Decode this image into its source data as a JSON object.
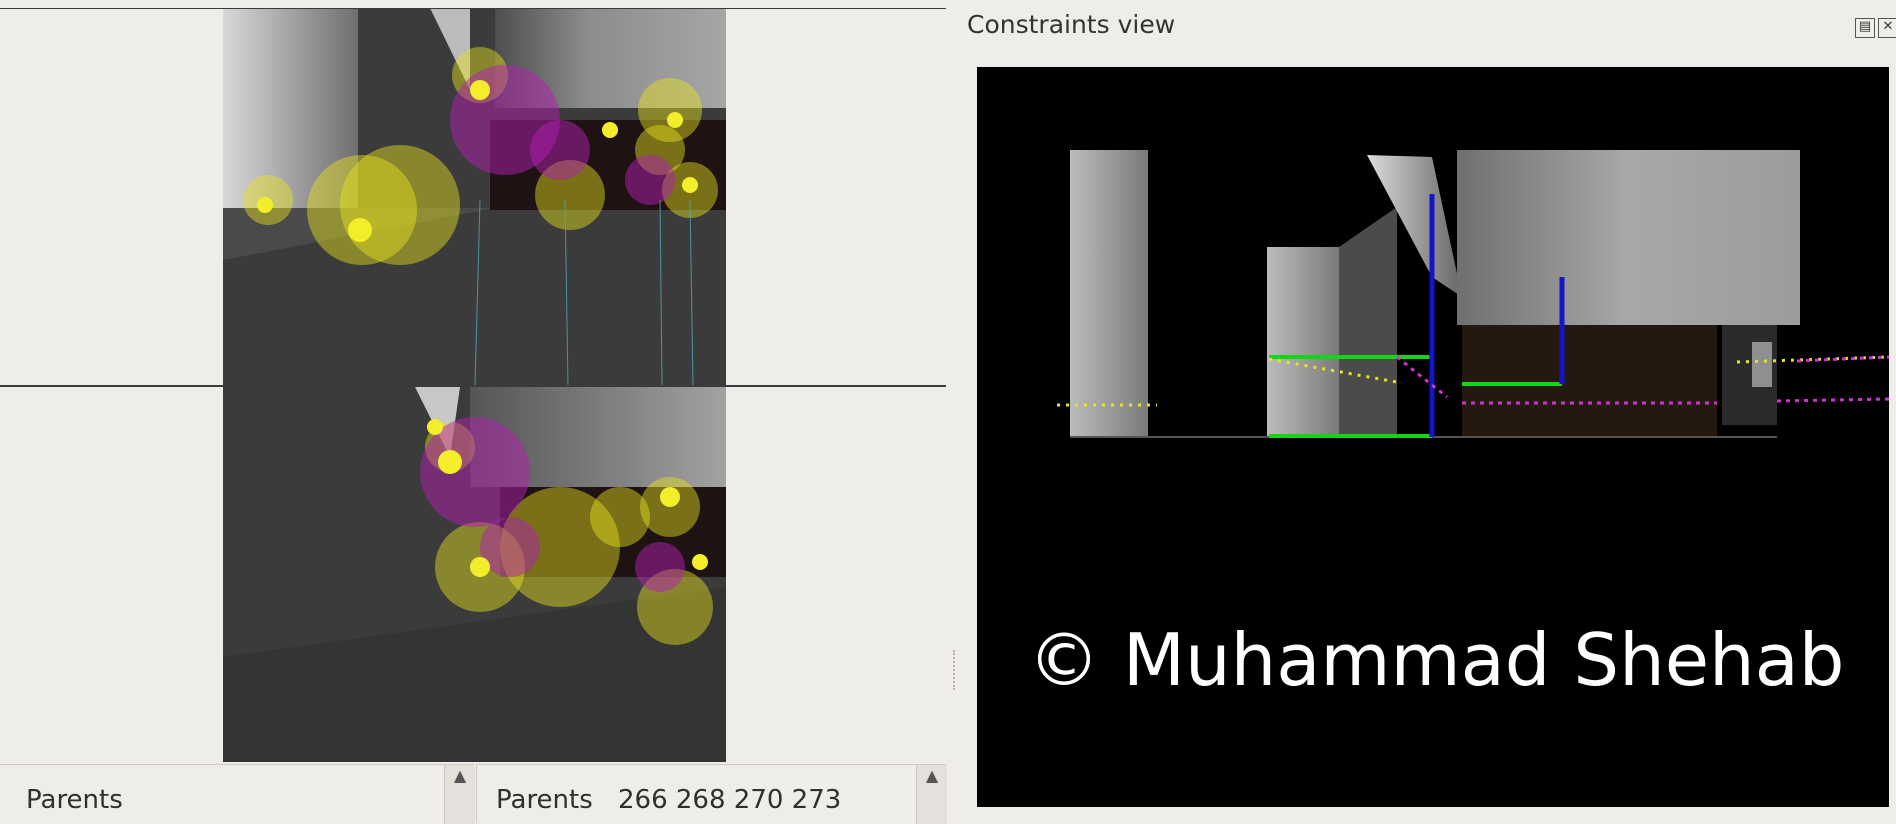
{
  "constraints_panel": {
    "title": "Constraints view",
    "float_icon": "restore-icon",
    "close_icon": "close-icon",
    "watermark": "© Muhammad Shehab"
  },
  "bottom_lists": {
    "left": {
      "label": "Parents"
    },
    "right": {
      "label": "Parents",
      "values": "266 268 270 273"
    }
  },
  "colors": {
    "window_bg": "#efede9",
    "view_bg": "#000000",
    "feature_yellow": "#e9e41f",
    "feature_magenta": "#b21fb2",
    "constraint_green": "#13d613",
    "constraint_blue": "#1414c8"
  },
  "icons": {
    "scroll_up": "scroll-up-icon"
  }
}
